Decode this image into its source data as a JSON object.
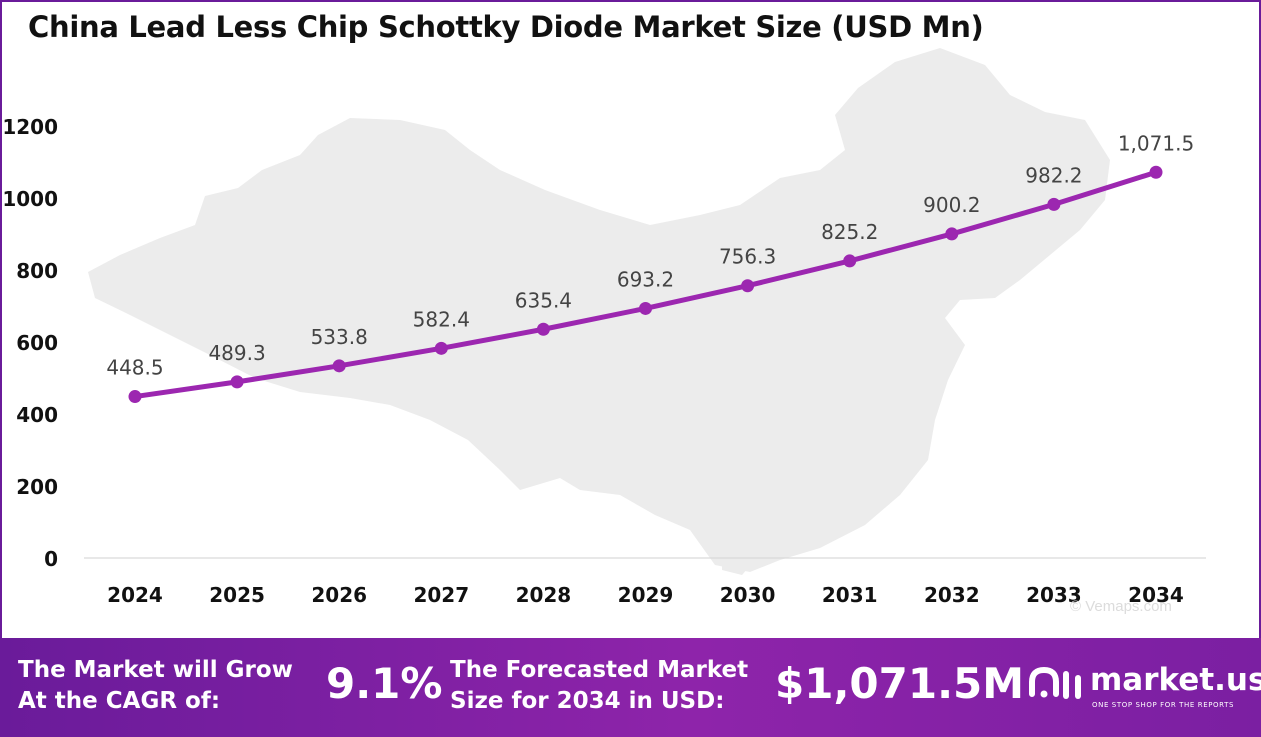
{
  "title": "China Lead Less Chip Schottky Diode Market Size (USD Mn)",
  "chart_data": {
    "type": "line",
    "categories": [
      "2024",
      "2025",
      "2026",
      "2027",
      "2028",
      "2029",
      "2030",
      "2031",
      "2032",
      "2033",
      "2034"
    ],
    "values": [
      448.5,
      489.3,
      533.8,
      582.4,
      635.4,
      693.2,
      756.3,
      825.2,
      900.2,
      982.2,
      1071.5
    ],
    "data_labels": [
      "448.5",
      "489.3",
      "533.8",
      "582.4",
      "635.4",
      "693.2",
      "756.3",
      "825.2",
      "900.2",
      "982.2",
      "1,071.5"
    ],
    "y_ticks": [
      0,
      200,
      400,
      600,
      800,
      1000,
      1200
    ],
    "ylim": [
      0,
      1200
    ],
    "line_color": "#9c27b0",
    "grid": false,
    "legend": "none"
  },
  "banner": {
    "cagr_text_line1": "The Market will Grow",
    "cagr_text_line2": "At the CAGR of:",
    "cagr_value": "9.1%",
    "forecast_text_line1": "The Forecasted Market",
    "forecast_text_line2": "Size for 2034 in USD:",
    "forecast_value": "$1,071.5M",
    "brand_name": "market.us",
    "brand_tagline": "ONE STOP SHOP FOR THE REPORTS"
  },
  "watermark": "© Vemaps.com",
  "colors": {
    "accent": "#8e24aa",
    "frame": "#6a1b9a",
    "map": "#ececec"
  }
}
